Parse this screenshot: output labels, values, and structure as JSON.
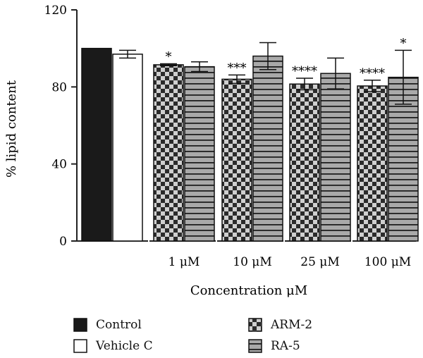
{
  "chart_data": {
    "type": "bar",
    "ylabel": "% lipid content",
    "xlabel": "Concentration μM",
    "ylim": [
      0,
      120
    ],
    "yticks": [
      "0",
      "40",
      "80",
      "120"
    ],
    "groups": [
      {
        "label": "",
        "bars": [
          {
            "series": "Control",
            "value": 100,
            "error": 0,
            "sig": ""
          },
          {
            "series": "Vehicle C",
            "value": 97,
            "error": 2,
            "sig": ""
          }
        ]
      },
      {
        "label": "1 μM",
        "bars": [
          {
            "series": "ARM-2",
            "value": 91.5,
            "error": 0.5,
            "sig": "*"
          },
          {
            "series": "RA-5",
            "value": 90.5,
            "error": 2.5,
            "sig": ""
          }
        ]
      },
      {
        "label": "10 μM",
        "bars": [
          {
            "series": "ARM-2",
            "value": 84,
            "error": 2.2,
            "sig": "***"
          },
          {
            "series": "RA-5",
            "value": 96,
            "error": 7,
            "sig": ""
          }
        ]
      },
      {
        "label": "25 μM",
        "bars": [
          {
            "series": "ARM-2",
            "value": 81.5,
            "error": 3,
            "sig": "****"
          },
          {
            "series": "RA-5",
            "value": 87,
            "error": 8,
            "sig": ""
          }
        ]
      },
      {
        "label": "100 μM",
        "bars": [
          {
            "series": "ARM-2",
            "value": 80.5,
            "error": 3,
            "sig": "****"
          },
          {
            "series": "RA-5",
            "value": 85,
            "error": 14,
            "sig": "*"
          }
        ]
      }
    ],
    "legend": [
      "Control",
      "Vehicle C",
      "ARM-2",
      "RA-5"
    ],
    "series_styles": {
      "Control": "solid-black",
      "Vehicle C": "white",
      "ARM-2": "checkerboard",
      "RA-5": "horizontal-stripes"
    },
    "legend_position": "bottom",
    "grid": false
  }
}
